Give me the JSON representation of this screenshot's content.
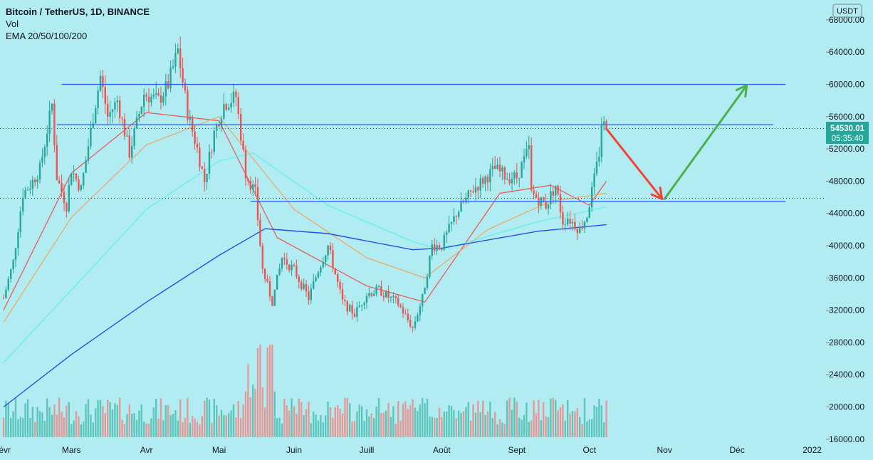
{
  "legend": {
    "title": "Bitcoin / TetherUS, 1D, BINANCE",
    "vol": "Vol",
    "ema": "EMA 20/50/100/200"
  },
  "currency_badge": "USDT",
  "price_badge": {
    "price": "54530.01",
    "countdown": "05:35:40"
  },
  "colors": {
    "background": "#b0ecf1",
    "up": "#26a69a",
    "down": "#ef5350",
    "ema20": "#ef5350",
    "ema50": "#f2a65a",
    "ema100": "#5ff0ec",
    "ema200": "#2850e0",
    "hline": "#2962ff",
    "arrow_down": "#f44336",
    "arrow_up": "#4caf50"
  },
  "chart_data": {
    "type": "candlestick",
    "symbol": "Bitcoin / TetherUS",
    "interval": "1D",
    "exchange": "BINANCE",
    "y_axis": {
      "unit": "USDT",
      "ylim": [
        15000,
        69000
      ],
      "ticks": [
        "16000.00",
        "20000.00",
        "24000.00",
        "28000.00",
        "32000.00",
        "36000.00",
        "40000.00",
        "44000.00",
        "48000.00",
        "52000.00",
        "56000.00",
        "60000.00",
        "64000.00",
        "68000.00"
      ]
    },
    "x_axis": {
      "start": "2021-02-01",
      "end": "2022-01-02",
      "ticks": [
        {
          "label": "févr",
          "date": "2021-02-01"
        },
        {
          "label": "Mars",
          "date": "2021-03-01"
        },
        {
          "label": "Avr",
          "date": "2021-04-01"
        },
        {
          "label": "Mai",
          "date": "2021-05-01"
        },
        {
          "label": "Juin",
          "date": "2021-06-01"
        },
        {
          "label": "Juill",
          "date": "2021-07-01"
        },
        {
          "label": "Août",
          "date": "2021-08-01"
        },
        {
          "label": "Sept",
          "date": "2021-09-01"
        },
        {
          "label": "Oct",
          "date": "2021-10-01"
        },
        {
          "label": "Nov",
          "date": "2021-11-01"
        },
        {
          "label": "Déc",
          "date": "2021-12-01"
        },
        {
          "label": "2022",
          "date": "2022-01-01"
        }
      ]
    },
    "price_path": [
      [
        "2021-02-01",
        33500
      ],
      [
        "2021-02-05",
        38000
      ],
      [
        "2021-02-09",
        46500
      ],
      [
        "2021-02-12",
        47500
      ],
      [
        "2021-02-16",
        49500
      ],
      [
        "2021-02-21",
        57500
      ],
      [
        "2021-02-23",
        48500
      ],
      [
        "2021-02-27",
        45000
      ],
      [
        "2021-03-01",
        49500
      ],
      [
        "2021-03-05",
        47000
      ],
      [
        "2021-03-10",
        56000
      ],
      [
        "2021-03-13",
        61000
      ],
      [
        "2021-03-16",
        56000
      ],
      [
        "2021-03-20",
        58000
      ],
      [
        "2021-03-25",
        51500
      ],
      [
        "2021-03-31",
        58800
      ],
      [
        "2021-04-06",
        58000
      ],
      [
        "2021-04-10",
        60000
      ],
      [
        "2021-04-14",
        64200
      ],
      [
        "2021-04-18",
        56500
      ],
      [
        "2021-04-22",
        52000
      ],
      [
        "2021-04-25",
        48000
      ],
      [
        "2021-04-29",
        54000
      ],
      [
        "2021-05-03",
        57500
      ],
      [
        "2021-05-08",
        58500
      ],
      [
        "2021-05-12",
        49000
      ],
      [
        "2021-05-16",
        46500
      ],
      [
        "2021-05-19",
        37000
      ],
      [
        "2021-05-23",
        33000
      ],
      [
        "2021-05-27",
        38500
      ],
      [
        "2021-06-01",
        37000
      ],
      [
        "2021-06-07",
        33500
      ],
      [
        "2021-06-11",
        37000
      ],
      [
        "2021-06-15",
        40000
      ],
      [
        "2021-06-21",
        33000
      ],
      [
        "2021-06-26",
        31500
      ],
      [
        "2021-07-01",
        34000
      ],
      [
        "2021-07-06",
        34500
      ],
      [
        "2021-07-14",
        32800
      ],
      [
        "2021-07-20",
        29800
      ],
      [
        "2021-07-24",
        33500
      ],
      [
        "2021-07-28",
        40000
      ],
      [
        "2021-08-01",
        40000
      ],
      [
        "2021-08-07",
        44000
      ],
      [
        "2021-08-14",
        47000
      ],
      [
        "2021-08-23",
        49500
      ],
      [
        "2021-08-28",
        48500
      ],
      [
        "2021-09-01",
        48500
      ],
      [
        "2021-09-06",
        52000
      ],
      [
        "2021-09-07",
        46500
      ],
      [
        "2021-09-13",
        45000
      ],
      [
        "2021-09-17",
        47500
      ],
      [
        "2021-09-20",
        43000
      ],
      [
        "2021-09-22",
        43500
      ],
      [
        "2021-09-27",
        42000
      ],
      [
        "2021-09-30",
        43800
      ],
      [
        "2021-10-03",
        48200
      ],
      [
        "2021-10-05",
        51500
      ],
      [
        "2021-10-06",
        55300
      ],
      [
        "2021-10-08",
        54530
      ]
    ],
    "candle_count": 250,
    "last_close": 54530.01,
    "ema": [
      {
        "name": "EMA 20",
        "points": [
          [
            "2021-02-01",
            32000
          ],
          [
            "2021-03-01",
            49000
          ],
          [
            "2021-04-01",
            56500
          ],
          [
            "2021-05-01",
            55500
          ],
          [
            "2021-05-25",
            41000
          ],
          [
            "2021-07-01",
            35000
          ],
          [
            "2021-07-25",
            33000
          ],
          [
            "2021-08-25",
            46500
          ],
          [
            "2021-09-15",
            47500
          ],
          [
            "2021-10-01",
            45000
          ],
          [
            "2021-10-08",
            48000
          ]
        ]
      },
      {
        "name": "EMA 50",
        "points": [
          [
            "2021-02-01",
            30500
          ],
          [
            "2021-03-01",
            43500
          ],
          [
            "2021-04-01",
            52500
          ],
          [
            "2021-05-01",
            56000
          ],
          [
            "2021-06-01",
            44500
          ],
          [
            "2021-07-01",
            38500
          ],
          [
            "2021-07-25",
            36000
          ],
          [
            "2021-08-20",
            42000
          ],
          [
            "2021-09-15",
            45500
          ],
          [
            "2021-10-08",
            46500
          ]
        ]
      },
      {
        "name": "EMA 100",
        "points": [
          [
            "2021-02-01",
            25500
          ],
          [
            "2021-03-01",
            34500
          ],
          [
            "2021-04-01",
            44500
          ],
          [
            "2021-05-01",
            50500
          ],
          [
            "2021-05-15",
            51500
          ],
          [
            "2021-06-15",
            45000
          ],
          [
            "2021-07-20",
            40500
          ],
          [
            "2021-08-01",
            39500
          ],
          [
            "2021-09-10",
            43000
          ],
          [
            "2021-10-08",
            44800
          ]
        ]
      },
      {
        "name": "EMA 200",
        "points": [
          [
            "2021-02-01",
            20000
          ],
          [
            "2021-03-01",
            26500
          ],
          [
            "2021-04-01",
            33000
          ],
          [
            "2021-05-01",
            38800
          ],
          [
            "2021-05-20",
            42100
          ],
          [
            "2021-06-15",
            41500
          ],
          [
            "2021-07-20",
            39500
          ],
          [
            "2021-08-01",
            39700
          ],
          [
            "2021-09-10",
            41800
          ],
          [
            "2021-10-08",
            42600
          ]
        ]
      }
    ],
    "horizontal_lines": [
      {
        "price": 60000,
        "from": "2021-02-25",
        "to": "2021-12-21"
      },
      {
        "price": 55000,
        "from": "2021-02-23",
        "to": "2021-12-16"
      },
      {
        "price": 45500,
        "from": "2021-05-14",
        "to": "2021-12-21"
      }
    ],
    "drawn_arrows": [
      {
        "direction": "down",
        "from": [
          "2021-10-08",
          54500
        ],
        "to": [
          "2021-10-31",
          45800
        ]
      },
      {
        "direction": "up",
        "from": [
          "2021-11-01",
          45800
        ],
        "to": [
          "2021-12-05",
          59900
        ]
      }
    ]
  }
}
